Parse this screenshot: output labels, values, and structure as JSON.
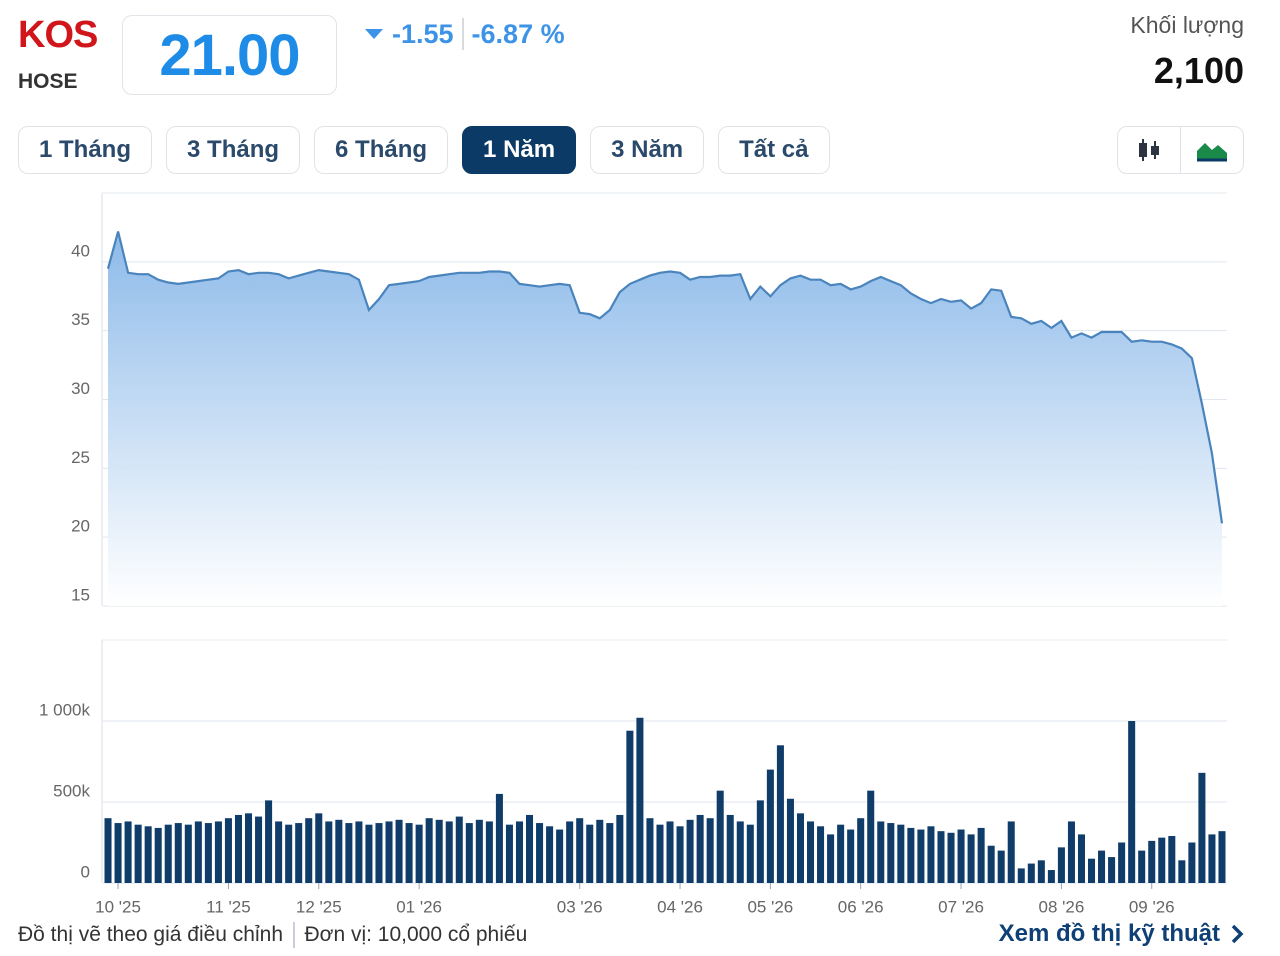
{
  "header": {
    "ticker": "KOS",
    "exchange": "HOSE",
    "price": "21.00",
    "change": "-1.55",
    "change_percent": "-6.87 %",
    "volume_label": "Khối lượng",
    "volume": "2,100"
  },
  "range_buttons": [
    "1 Tháng",
    "3 Tháng",
    "6 Tháng",
    "1 Năm",
    "3 Năm",
    "Tất cả"
  ],
  "active_range": 3,
  "footer": {
    "note": "Đồ thị vẽ theo giá điều chỉnh",
    "unit": "Đơn vị: 10,000 cổ phiếu",
    "link": "Xem đồ thị kỹ thuật"
  },
  "chart_data": {
    "type": "area",
    "categories": [
      null,
      "10 '25",
      null,
      null,
      null,
      null,
      null,
      null,
      null,
      null,
      null,
      null,
      "11 '25",
      null,
      null,
      null,
      null,
      null,
      null,
      null,
      null,
      "12 '25",
      null,
      null,
      null,
      null,
      null,
      null,
      null,
      null,
      null,
      "01 '26",
      null,
      null,
      null,
      null,
      null,
      null,
      null,
      null,
      null,
      null,
      null,
      null,
      null,
      null,
      null,
      "03 '26",
      null,
      null,
      null,
      null,
      null,
      null,
      null,
      null,
      null,
      "04 '26",
      null,
      null,
      null,
      null,
      null,
      null,
      null,
      null,
      "05 '26",
      null,
      null,
      null,
      null,
      null,
      null,
      null,
      null,
      "06 '26",
      null,
      null,
      null,
      null,
      null,
      null,
      null,
      null,
      null,
      "07 '26",
      null,
      null,
      null,
      null,
      null,
      null,
      null,
      null,
      null,
      "08 '26",
      null,
      null,
      null,
      null,
      null,
      null,
      null,
      null,
      "09 '26",
      null,
      null,
      null,
      null,
      null,
      null,
      null
    ],
    "series": [
      {
        "type": "area",
        "color": "#4a84bd",
        "values": [
          39.5,
          42.2,
          39.2,
          39.1,
          39.1,
          38.7,
          38.5,
          38.4,
          38.5,
          38.6,
          38.7,
          38.8,
          39.3,
          39.4,
          39.1,
          39.2,
          39.2,
          39.1,
          38.8,
          39.0,
          39.2,
          39.4,
          39.3,
          39.2,
          39.1,
          38.7,
          36.5,
          37.3,
          38.3,
          38.4,
          38.5,
          38.6,
          38.9,
          39.0,
          39.1,
          39.2,
          39.2,
          39.2,
          39.3,
          39.3,
          39.2,
          38.4,
          38.3,
          38.2,
          38.3,
          38.4,
          38.3,
          36.3,
          36.2,
          35.9,
          36.5,
          37.8,
          38.4,
          38.7,
          39.0,
          39.2,
          39.3,
          39.2,
          38.7,
          38.9,
          38.9,
          39.0,
          39.0,
          39.1,
          37.3,
          38.2,
          37.5,
          38.3,
          38.8,
          39.0,
          38.7,
          38.7,
          38.3,
          38.4,
          38.0,
          38.2,
          38.6,
          38.9,
          38.6,
          38.3,
          37.7,
          37.3,
          37.0,
          37.3,
          37.1,
          37.2,
          36.6,
          37.0,
          38.0,
          37.9,
          36.0,
          35.9,
          35.5,
          35.7,
          35.2,
          35.7,
          34.5,
          34.8,
          34.5,
          34.9,
          34.9,
          34.9,
          34.2,
          34.3,
          34.2,
          34.2,
          34.0,
          33.7,
          33.0,
          29.7,
          26.1,
          21.0
        ]
      },
      {
        "type": "bar",
        "axis": "y2",
        "color": "#0f3c69",
        "values": [
          400000,
          370000,
          380000,
          360000,
          350000,
          340000,
          360000,
          370000,
          360000,
          380000,
          370000,
          380000,
          400000,
          420000,
          430000,
          410000,
          510000,
          380000,
          360000,
          370000,
          400000,
          430000,
          380000,
          390000,
          370000,
          380000,
          360000,
          370000,
          380000,
          390000,
          370000,
          360000,
          400000,
          390000,
          380000,
          410000,
          370000,
          390000,
          380000,
          550000,
          360000,
          380000,
          420000,
          370000,
          350000,
          330000,
          380000,
          400000,
          360000,
          390000,
          370000,
          420000,
          940000,
          1020000,
          400000,
          360000,
          380000,
          350000,
          390000,
          420000,
          400000,
          570000,
          420000,
          380000,
          360000,
          510000,
          700000,
          850000,
          520000,
          430000,
          380000,
          350000,
          300000,
          360000,
          330000,
          400000,
          570000,
          380000,
          370000,
          360000,
          340000,
          330000,
          350000,
          320000,
          310000,
          330000,
          300000,
          340000,
          230000,
          200000,
          380000,
          90000,
          120000,
          140000,
          80000,
          220000,
          380000,
          300000,
          150000,
          200000,
          160000,
          250000,
          1000000,
          200000,
          260000,
          280000,
          290000,
          140000,
          250000,
          680000,
          300000,
          320000
        ]
      }
    ],
    "ylim": [
      15,
      45
    ],
    "yticks": [
      15,
      20,
      25,
      30,
      35,
      40
    ],
    "y2lim": [
      0,
      1500000
    ],
    "y2ticks": [
      0,
      {
        "value": 500000,
        "label": "500k"
      },
      {
        "value": 1000000,
        "label": "1 000k"
      }
    ],
    "grid": true
  }
}
